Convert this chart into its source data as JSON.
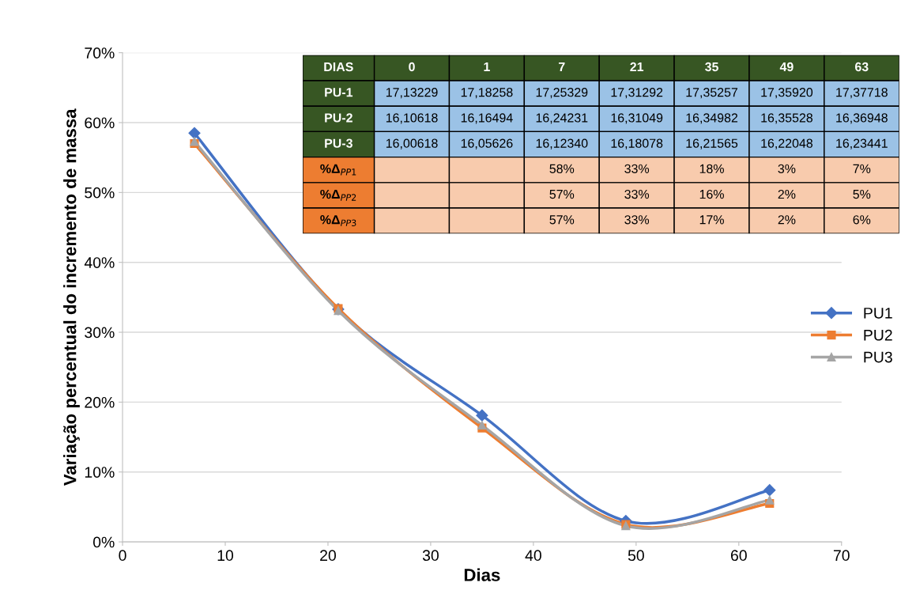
{
  "chart_data": {
    "type": "line",
    "xlabel": "Dias",
    "ylabel": "Variação percentual do incremento de massa",
    "x": [
      7,
      21,
      35,
      49,
      63
    ],
    "series": [
      {
        "name": "PU1",
        "color": "#4472c4",
        "marker": "diamond",
        "values": [
          58.5,
          33.3,
          18.1,
          3.0,
          7.4
        ]
      },
      {
        "name": "PU2",
        "color": "#ed7d31",
        "marker": "square",
        "values": [
          57.0,
          33.4,
          16.3,
          2.5,
          5.5
        ]
      },
      {
        "name": "PU3",
        "color": "#a5a5a5",
        "marker": "triangle",
        "values": [
          57.3,
          33.1,
          16.7,
          2.3,
          6.0
        ]
      }
    ],
    "xlim": [
      0,
      70
    ],
    "xticks": [
      0,
      10,
      20,
      30,
      40,
      50,
      60,
      70
    ],
    "ylim": [
      0,
      70
    ],
    "yticks": [
      {
        "value": 0,
        "label": "0%"
      },
      {
        "value": 10,
        "label": "10%"
      },
      {
        "value": 20,
        "label": "20%"
      },
      {
        "value": 30,
        "label": "30%"
      },
      {
        "value": 40,
        "label": "40%"
      },
      {
        "value": 50,
        "label": "50%"
      },
      {
        "value": 60,
        "label": "60%"
      },
      {
        "value": 70,
        "label": "70%"
      }
    ],
    "grid": "y",
    "legend": "right",
    "line_style": "solid",
    "annotations": [
      "DIAS",
      "0",
      "1",
      "7",
      "21",
      "35",
      "49",
      "63",
      "PU-1",
      "17,13229",
      "17,18258",
      "17,25329",
      "17,31292",
      "17,35257",
      "17,35920",
      "17,37718",
      "PU-2",
      "16,10618",
      "16,16494",
      "16,24231",
      "16,31049",
      "16,34982",
      "16,35528",
      "16,36948",
      "PU-3",
      "16,00618",
      "16,05626",
      "16,12340",
      "16,18078",
      "16,21565",
      "16,22048",
      "16,23441",
      "%Δ$_{PP1}$",
      "58%",
      "33%",
      "18%",
      "3%",
      "7%",
      "%Δ$_{PP2}$",
      "57%",
      "33%",
      "16%",
      "2%",
      "5%",
      "%Δ$_{PP3}$",
      "57%",
      "33%",
      "17%",
      "2%",
      "6%"
    ]
  }
}
